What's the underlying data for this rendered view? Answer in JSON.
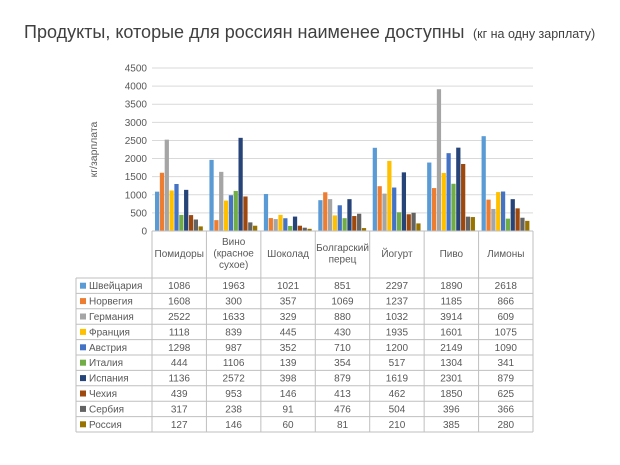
{
  "chart_data": {
    "type": "bar",
    "title": "Продукты, которые для россиян наименее доступны",
    "subtitle": "(кг на одну зарплату)",
    "ylabel": "кг/зарплата",
    "xlabel": "",
    "ylim": [
      0,
      4500
    ],
    "yticks": [
      0,
      500,
      1000,
      1500,
      2000,
      2500,
      3000,
      3500,
      4000,
      4500
    ],
    "grid": true,
    "legend": "table",
    "categories": [
      [
        "Помидоры"
      ],
      [
        "Вино",
        "(красное",
        "сухое)"
      ],
      [
        "Шоколад"
      ],
      [
        "Болгарский",
        "перец"
      ],
      [
        "Йогурт"
      ],
      [
        "Пиво"
      ],
      [
        "Лимоны"
      ]
    ],
    "series": [
      {
        "name": "Швейцария",
        "color": "#5b9bd5",
        "values": [
          1086,
          1963,
          1021,
          851,
          2297,
          1890,
          2618
        ]
      },
      {
        "name": "Норвегия",
        "color": "#ed7d31",
        "values": [
          1608,
          300,
          357,
          1069,
          1237,
          1185,
          866
        ]
      },
      {
        "name": "Германия",
        "color": "#a5a5a5",
        "values": [
          2522,
          1633,
          329,
          880,
          1032,
          3914,
          609
        ]
      },
      {
        "name": "Франция",
        "color": "#ffc000",
        "values": [
          1118,
          839,
          445,
          430,
          1935,
          1601,
          1075
        ]
      },
      {
        "name": "Австрия",
        "color": "#4472c4",
        "values": [
          1298,
          987,
          352,
          710,
          1200,
          2149,
          1090
        ]
      },
      {
        "name": "Италия",
        "color": "#70ad47",
        "values": [
          444,
          1106,
          139,
          354,
          517,
          1304,
          341
        ]
      },
      {
        "name": "Испания",
        "color": "#264478",
        "values": [
          1136,
          2572,
          398,
          879,
          1619,
          2301,
          879
        ]
      },
      {
        "name": "Чехия",
        "color": "#9e480e",
        "values": [
          439,
          953,
          146,
          413,
          462,
          1850,
          625
        ]
      },
      {
        "name": "Сербия",
        "color": "#636363",
        "values": [
          317,
          238,
          91,
          476,
          504,
          396,
          366
        ]
      },
      {
        "name": "Россия",
        "color": "#997300",
        "values": [
          127,
          146,
          60,
          81,
          210,
          385,
          280
        ]
      }
    ]
  }
}
